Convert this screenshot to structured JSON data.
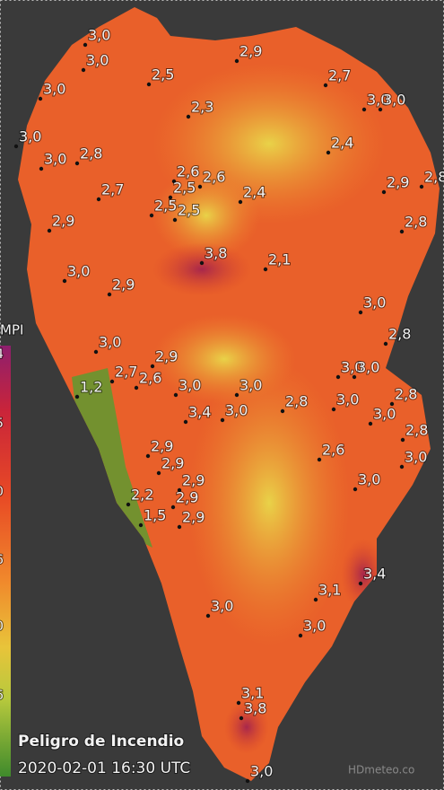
{
  "map": {
    "legend": {
      "title": "MPI",
      "ticks": [
        "4",
        "5",
        "0",
        "6",
        "0",
        "6"
      ]
    },
    "points": [
      "3,0",
      "3,0",
      "2,9",
      "2,5",
      "2,7",
      "3,0",
      "3,0",
      "3,0",
      "2,3",
      "3,0",
      "2,4",
      "3,0",
      "2,8",
      "2,6",
      "2,6",
      "2,8",
      "2,9",
      "2,7",
      "2,5",
      "2,4",
      "2,5",
      "2,5",
      "2,9",
      "2,8",
      "3,8",
      "2,1",
      "3,0",
      "2,9",
      "3,0",
      "2,8",
      "3,0",
      "2,9",
      "2,7",
      "2,6",
      "3,0",
      "3,0",
      "3,0",
      "3,0",
      "1,2",
      "2,8",
      "3,4",
      "3,0",
      "2,8",
      "3,0",
      "3,0",
      "2,8",
      "3,0",
      "2,9",
      "2,9",
      "2,9",
      "2,6",
      "3,0",
      "2,2",
      "2,9",
      "1,5",
      "2,9",
      "3,4",
      "3,1",
      "3,0",
      "3,0",
      "3,1",
      "3,8",
      "3,0"
    ],
    "caption": {
      "title": "Peligro de Incendio",
      "timestamp": "2020-02-01 16:30 UTC"
    },
    "watermark": "HDmeteo.co"
  }
}
